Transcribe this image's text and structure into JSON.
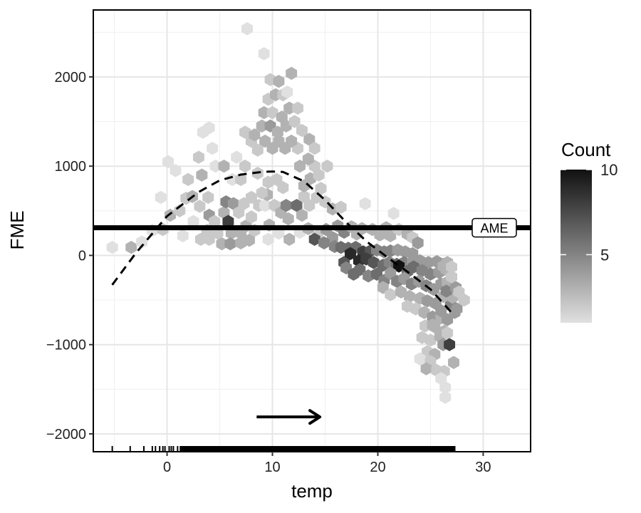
{
  "chart_data": {
    "type": "hexbin",
    "xlabel": "temp",
    "ylabel": "FME",
    "xlim": [
      -7,
      34.5
    ],
    "ylim": [
      -2200,
      2750
    ],
    "x_ticks": [
      0,
      10,
      20,
      30
    ],
    "x_tick_labels": [
      "0",
      "10",
      "20",
      "30"
    ],
    "y_ticks": [
      -2000,
      -1000,
      0,
      1000,
      2000
    ],
    "y_tick_labels": [
      "−2000",
      "−1000",
      "0",
      "1000",
      "2000"
    ],
    "grid": true,
    "legend": {
      "title": "Count",
      "range": [
        1,
        10
      ],
      "ticks": [
        5,
        10
      ],
      "tick_labels": [
        "5",
        "10"
      ],
      "placement": "right",
      "colors": [
        "#e0e0e0",
        "#111111"
      ]
    },
    "ame": {
      "label": "AME",
      "value": 310
    },
    "trend_line": {
      "style": "dashed",
      "points": [
        [
          -5.2,
          -330
        ],
        [
          -3,
          20
        ],
        [
          0,
          440
        ],
        [
          3,
          710
        ],
        [
          5,
          840
        ],
        [
          7,
          905
        ],
        [
          9,
          935
        ],
        [
          10,
          940
        ],
        [
          11,
          935
        ],
        [
          13,
          830
        ],
        [
          15,
          620
        ],
        [
          17,
          370
        ],
        [
          19,
          150
        ],
        [
          21,
          -30
        ],
        [
          23,
          -200
        ],
        [
          25,
          -380
        ],
        [
          27,
          -640
        ]
      ]
    },
    "arrow": {
      "from": [
        8.5,
        -1810
      ],
      "to": [
        14.5,
        -1810
      ]
    },
    "rug_x": [
      -5.2,
      -3.5,
      -2.2,
      -1.4,
      -1.1,
      -0.7,
      -0.4,
      -0.2,
      0.2,
      0.4,
      0.6,
      1.0,
      1.5,
      2.0,
      2.5,
      3.0,
      3.4,
      3.8,
      4.3,
      4.8,
      5.3,
      5.8,
      6.2,
      6.8,
      7.3,
      7.8,
      8.3,
      8.8,
      9.3,
      9.8,
      10.3,
      10.8,
      11.3,
      11.8,
      12.3,
      12.8,
      13.3,
      13.8,
      14.3,
      14.8,
      15.3,
      15.8,
      16.3,
      16.8,
      17.3,
      17.8,
      18.3,
      18.8,
      19.3,
      19.8,
      20.3,
      20.8,
      21.3,
      21.8,
      22.3,
      22.8,
      23.3,
      23.8,
      24.3,
      24.8,
      25.3,
      25.8,
      26.3,
      26.8,
      27.3
    ],
    "hexes": [
      [
        -5.2,
        90,
        1
      ],
      [
        -3.4,
        90,
        3
      ],
      [
        -2.4,
        150,
        1
      ],
      [
        -1.4,
        280,
        1
      ],
      [
        -0.4,
        290,
        2
      ],
      [
        0.1,
        1050,
        1
      ],
      [
        0.8,
        950,
        1
      ],
      [
        -0.6,
        650,
        1
      ],
      [
        0.3,
        450,
        3
      ],
      [
        1.2,
        500,
        2
      ],
      [
        1.8,
        640,
        2
      ],
      [
        2.4,
        660,
        3
      ],
      [
        3.1,
        550,
        2
      ],
      [
        3.9,
        650,
        2
      ],
      [
        3.3,
        900,
        3
      ],
      [
        4.0,
        450,
        4
      ],
      [
        2.5,
        380,
        1
      ],
      [
        1.5,
        220,
        1
      ],
      [
        3.8,
        280,
        2
      ],
      [
        4.5,
        380,
        2
      ],
      [
        5.4,
        480,
        3
      ],
      [
        5.6,
        600,
        5
      ],
      [
        5.8,
        380,
        8
      ],
      [
        6.3,
        580,
        4
      ],
      [
        6.8,
        480,
        2
      ],
      [
        7.3,
        580,
        2
      ],
      [
        6.1,
        250,
        3
      ],
      [
        7.0,
        250,
        3
      ],
      [
        7.5,
        330,
        3
      ],
      [
        8.0,
        430,
        2
      ],
      [
        4.8,
        250,
        2
      ],
      [
        5.2,
        130,
        3
      ],
      [
        4.0,
        180,
        2
      ],
      [
        3.2,
        180,
        2
      ],
      [
        6.0,
        130,
        4
      ],
      [
        7.0,
        140,
        3
      ],
      [
        7.8,
        170,
        3
      ],
      [
        7.4,
        1000,
        2
      ],
      [
        6.6,
        1100,
        1
      ],
      [
        8.0,
        650,
        2
      ],
      [
        8.7,
        560,
        2
      ],
      [
        9.3,
        560,
        1
      ],
      [
        9.5,
        680,
        3
      ],
      [
        10.2,
        560,
        2
      ],
      [
        10.8,
        480,
        3
      ],
      [
        11.3,
        560,
        5
      ],
      [
        11.5,
        410,
        3
      ],
      [
        12.3,
        560,
        6
      ],
      [
        13.0,
        660,
        2
      ],
      [
        12.8,
        450,
        3
      ],
      [
        13.5,
        560,
        2
      ],
      [
        14.2,
        650,
        2
      ],
      [
        14.6,
        750,
        2
      ],
      [
        15.0,
        600,
        2
      ],
      [
        15.7,
        520,
        3
      ],
      [
        16.5,
        540,
        2
      ],
      [
        13.0,
        780,
        3
      ],
      [
        13.6,
        860,
        3
      ],
      [
        14.4,
        900,
        2
      ],
      [
        15.2,
        1000,
        2
      ],
      [
        14.0,
        1000,
        2
      ],
      [
        13.4,
        1080,
        3
      ],
      [
        12.6,
        1000,
        3
      ],
      [
        12.4,
        1200,
        2
      ],
      [
        11.8,
        1280,
        3
      ],
      [
        11.2,
        1200,
        3
      ],
      [
        10.6,
        1280,
        3
      ],
      [
        10.0,
        1200,
        3
      ],
      [
        9.3,
        1280,
        3
      ],
      [
        8.6,
        1180,
        2
      ],
      [
        8.0,
        1280,
        2
      ],
      [
        7.4,
        1380,
        2
      ],
      [
        8.3,
        1350,
        3
      ],
      [
        9.0,
        1450,
        3
      ],
      [
        9.8,
        1450,
        4
      ],
      [
        10.5,
        1380,
        3
      ],
      [
        11.3,
        1450,
        3
      ],
      [
        12.1,
        1500,
        2
      ],
      [
        12.8,
        1400,
        2
      ],
      [
        13.5,
        1300,
        3
      ],
      [
        14.0,
        1200,
        2
      ],
      [
        9.2,
        1600,
        3
      ],
      [
        10.0,
        1600,
        2
      ],
      [
        10.9,
        1550,
        3
      ],
      [
        11.6,
        1650,
        3
      ],
      [
        12.4,
        1650,
        2
      ],
      [
        9.6,
        1750,
        2
      ],
      [
        10.3,
        1800,
        3
      ],
      [
        11.0,
        1800,
        2
      ],
      [
        9.8,
        1970,
        2
      ],
      [
        10.6,
        1950,
        3
      ],
      [
        11.4,
        1830,
        1
      ],
      [
        11.8,
        2040,
        3
      ],
      [
        9.2,
        2260,
        1
      ],
      [
        7.6,
        2540,
        1
      ],
      [
        3.4,
        1380,
        1
      ],
      [
        4.0,
        1430,
        1
      ],
      [
        4.3,
        1200,
        1
      ],
      [
        3.0,
        1100,
        2
      ],
      [
        2.0,
        850,
        2
      ],
      [
        4.6,
        1000,
        1
      ],
      [
        5.4,
        1000,
        3
      ],
      [
        6.2,
        850,
        1
      ],
      [
        7.0,
        850,
        2
      ],
      [
        9.6,
        820,
        2
      ],
      [
        10.4,
        850,
        2
      ],
      [
        11.0,
        760,
        2
      ],
      [
        9.0,
        700,
        2
      ],
      [
        8.6,
        920,
        2
      ],
      [
        9.7,
        340,
        3
      ],
      [
        8.3,
        280,
        2
      ],
      [
        9.6,
        180,
        1
      ],
      [
        10.6,
        250,
        1
      ],
      [
        11.6,
        180,
        3
      ],
      [
        12.6,
        260,
        1
      ],
      [
        13.4,
        300,
        3
      ],
      [
        14.3,
        220,
        2
      ],
      [
        15.1,
        290,
        4
      ],
      [
        15.7,
        200,
        4
      ],
      [
        16.2,
        330,
        4
      ],
      [
        16.8,
        260,
        5
      ],
      [
        17.5,
        320,
        3
      ],
      [
        18.0,
        240,
        3
      ],
      [
        18.5,
        300,
        3
      ],
      [
        19.5,
        290,
        3
      ],
      [
        20.2,
        230,
        3
      ],
      [
        20.8,
        310,
        3
      ],
      [
        21.2,
        220,
        3
      ],
      [
        22.0,
        290,
        2
      ],
      [
        22.8,
        240,
        3
      ],
      [
        23.3,
        200,
        2
      ],
      [
        23.8,
        140,
        4
      ],
      [
        21.5,
        470,
        1
      ],
      [
        18.8,
        580,
        1
      ],
      [
        14.0,
        180,
        7
      ],
      [
        14.9,
        140,
        5
      ],
      [
        15.9,
        100,
        5
      ],
      [
        16.5,
        90,
        6
      ],
      [
        17.2,
        80,
        6
      ],
      [
        17.9,
        90,
        6
      ],
      [
        18.6,
        40,
        8
      ],
      [
        19.3,
        50,
        7
      ],
      [
        19.9,
        60,
        5
      ],
      [
        20.6,
        40,
        5
      ],
      [
        21.2,
        50,
        5
      ],
      [
        21.9,
        60,
        4
      ],
      [
        22.6,
        40,
        4
      ],
      [
        23.3,
        20,
        4
      ],
      [
        16.8,
        -80,
        7
      ],
      [
        17.4,
        20,
        9
      ],
      [
        18.2,
        -60,
        9
      ],
      [
        18.9,
        -40,
        8
      ],
      [
        19.6,
        -80,
        7
      ],
      [
        20.5,
        -110,
        6
      ],
      [
        21.1,
        -80,
        5
      ],
      [
        21.8,
        -100,
        6
      ],
      [
        22.5,
        -80,
        5
      ],
      [
        23.3,
        -70,
        4
      ],
      [
        24.0,
        -60,
        4
      ],
      [
        24.8,
        -80,
        4
      ],
      [
        25.6,
        -70,
        4
      ],
      [
        26.2,
        -100,
        4
      ],
      [
        22.0,
        -120,
        10
      ],
      [
        22.8,
        -180,
        6
      ],
      [
        23.4,
        -130,
        6
      ],
      [
        24.2,
        -170,
        5
      ],
      [
        25.0,
        -210,
        5
      ],
      [
        25.8,
        -190,
        4
      ],
      [
        26.5,
        -160,
        3
      ],
      [
        17.0,
        -140,
        5
      ],
      [
        17.7,
        -210,
        6
      ],
      [
        18.3,
        -160,
        6
      ],
      [
        19.1,
        -230,
        5
      ],
      [
        19.9,
        -210,
        6
      ],
      [
        20.6,
        -280,
        5
      ],
      [
        21.2,
        -200,
        4
      ],
      [
        21.8,
        -290,
        5
      ],
      [
        22.5,
        -260,
        4
      ],
      [
        23.2,
        -320,
        5
      ],
      [
        23.9,
        -290,
        4
      ],
      [
        24.6,
        -340,
        5
      ],
      [
        25.3,
        -380,
        4
      ],
      [
        26.0,
        -320,
        4
      ],
      [
        26.6,
        -300,
        3
      ],
      [
        20.5,
        -360,
        3
      ],
      [
        21.2,
        -440,
        2
      ],
      [
        22.2,
        -410,
        3
      ],
      [
        23.0,
        -460,
        3
      ],
      [
        24.0,
        -480,
        3
      ],
      [
        24.7,
        -510,
        4
      ],
      [
        25.5,
        -540,
        4
      ],
      [
        26.2,
        -460,
        3
      ],
      [
        26.9,
        -560,
        5
      ],
      [
        27.5,
        -600,
        4
      ],
      [
        28.2,
        -500,
        2
      ],
      [
        22.8,
        -570,
        2
      ],
      [
        23.6,
        -600,
        2
      ],
      [
        24.4,
        -640,
        3
      ],
      [
        25.2,
        -690,
        4
      ],
      [
        26.0,
        -700,
        3
      ],
      [
        26.6,
        -720,
        4
      ],
      [
        27.3,
        -640,
        4
      ],
      [
        24.5,
        -790,
        2
      ],
      [
        25.4,
        -800,
        3
      ],
      [
        26.3,
        -850,
        3
      ],
      [
        24.2,
        -920,
        2
      ],
      [
        25.0,
        -950,
        2
      ],
      [
        25.9,
        -910,
        3
      ],
      [
        26.6,
        -870,
        2
      ],
      [
        24.7,
        -1080,
        2
      ],
      [
        25.4,
        -1110,
        3
      ],
      [
        26.2,
        -1000,
        4
      ],
      [
        26.8,
        -1000,
        8
      ],
      [
        24.0,
        -1160,
        1
      ],
      [
        25.0,
        -1190,
        2
      ],
      [
        24.6,
        -1270,
        3
      ],
      [
        27.2,
        -1200,
        3
      ],
      [
        25.6,
        -1290,
        2
      ],
      [
        26.3,
        -1300,
        2
      ],
      [
        26.0,
        -1380,
        1
      ],
      [
        26.4,
        -1480,
        1
      ],
      [
        26.4,
        -1590,
        1
      ],
      [
        25.2,
        -780,
        3
      ],
      [
        26.0,
        -620,
        4
      ],
      [
        27.1,
        -470,
        3
      ],
      [
        26.5,
        -400,
        5
      ],
      [
        27.4,
        -360,
        4
      ],
      [
        27.7,
        -410,
        2
      ],
      [
        27.0,
        -240,
        2
      ],
      [
        26.2,
        -120,
        3
      ],
      [
        26.6,
        -80,
        3
      ],
      [
        27.0,
        -130,
        2
      ]
    ]
  }
}
